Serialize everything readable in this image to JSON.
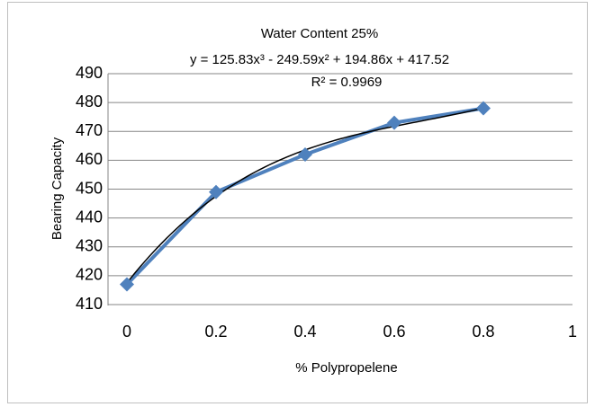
{
  "chart_data": {
    "type": "scatter",
    "title": "Water Content 25%",
    "x_label": "% Polypropelene",
    "y_label": "Bearing Capacity",
    "series": [
      {
        "name": "Bearing Capacity",
        "color": "#4f81bd",
        "x": [
          0,
          0.2,
          0.4,
          0.6,
          0.8
        ],
        "values": [
          417,
          449,
          462,
          473,
          478
        ]
      }
    ],
    "trendline": {
      "type": "polynomial",
      "coefficients": [
        417.52,
        194.86,
        -249.59,
        125.83
      ],
      "color": "#000000",
      "equation": "y = 125.83x³ - 249.59x² + 194.86x + 417.52",
      "r_squared": "R² = 0.9969"
    },
    "xlim": [
      0,
      1
    ],
    "xticks": [
      0,
      0.2,
      0.4,
      0.6,
      0.8,
      1
    ],
    "ylim": [
      410,
      490
    ],
    "yticks": [
      410,
      420,
      430,
      440,
      450,
      460,
      470,
      480,
      490
    ],
    "grid": true
  }
}
